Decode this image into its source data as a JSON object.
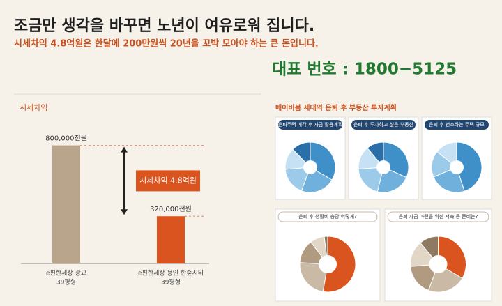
{
  "header": {
    "title": "조금만 생각을 바꾸면 노년이 여유로워 집니다.",
    "subtitle": "시세차익 4.8억원은 한달에 200만원씩 20년을 꼬박 모아야 하는 큰 돈입니다.",
    "phone": "대표 번호 : 1800−5125"
  },
  "chart_data": [
    {
      "type": "bar",
      "title": "시세차익",
      "categories": [
        "e편한세상 광교",
        "e편한세상 용인 한숲시티"
      ],
      "category_notes": [
        "39평형",
        "39평형"
      ],
      "values": [
        800000,
        320000
      ],
      "value_labels": [
        "800,000천원",
        "320,000천원"
      ],
      "colors": [
        "#b9a58b",
        "#d9541e"
      ],
      "ylim": [
        0,
        850000
      ],
      "annotation": "시세차익 4.8억원"
    },
    {
      "type": "pie",
      "section_title": "베이비붐 세대의 은퇴 후 부동산 투자계획",
      "title": "은퇴주택 매각 후 자금 활용계획",
      "values": [
        33.4,
        22.3,
        18,
        14,
        12.3
      ],
      "colors": [
        "#3f8fc9",
        "#6fb0dc",
        "#9ccbea",
        "#c6e1f3",
        "#2a6fa8"
      ],
      "donut": false
    },
    {
      "type": "pie",
      "title": "은퇴 후 투자하고 싶은 부동산",
      "values": [
        31.6,
        22.3,
        20,
        15,
        11.1
      ],
      "colors": [
        "#3f8fc9",
        "#6fb0dc",
        "#9ccbea",
        "#c6e1f3",
        "#2a6fa8"
      ],
      "donut": false
    },
    {
      "type": "pie",
      "title": "은퇴 후 선호하는 주택 규모",
      "values": [
        45,
        23.7,
        17,
        14.3
      ],
      "colors": [
        "#3f8fc9",
        "#6fb0dc",
        "#9ccbea",
        "#c6e1f3"
      ],
      "donut": false
    },
    {
      "type": "pie",
      "title": "은퇴 후 생활비 충당 어떻게?",
      "values": [
        52.7,
        23.2,
        13.7,
        8.4,
        2
      ],
      "colors": [
        "#d9541e",
        "#c9b9a5",
        "#b09a80",
        "#e2d6c6",
        "#8e7a62"
      ],
      "donut": true
    },
    {
      "type": "pie",
      "title": "은퇴 자금 마련을 위한 저축 등 준비는?",
      "values": [
        33.4,
        22.3,
        18,
        15.2,
        11.1
      ],
      "colors": [
        "#d9541e",
        "#c9b9a5",
        "#b09a80",
        "#e2d6c6",
        "#8e7a62"
      ],
      "donut": true
    }
  ]
}
